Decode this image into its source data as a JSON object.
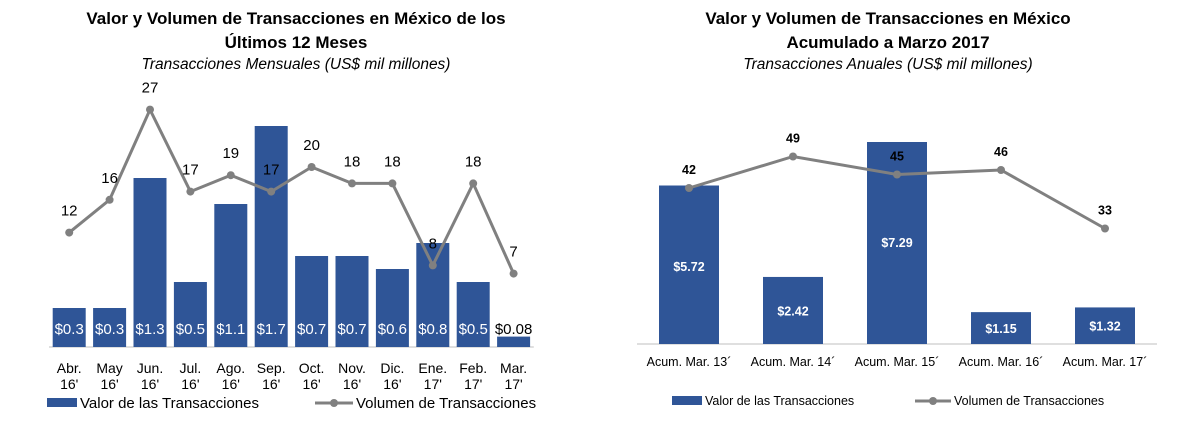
{
  "colors": {
    "bar": "#2F5597",
    "line": "#808080",
    "text": "#000000",
    "bar_label": "#ffffff"
  },
  "chart_data": [
    {
      "type": "bar",
      "title_line1": "Valor y Volumen de Transacciones en México de los",
      "title_line2": "Últimos 12 Meses",
      "subtitle": "Transacciones Mensuales (US$ mil millones)",
      "categories": [
        [
          "Abr.",
          "16'"
        ],
        [
          "May",
          "16'"
        ],
        [
          "Jun.",
          "16'"
        ],
        [
          "Jul.",
          "16'"
        ],
        [
          "Ago.",
          "16'"
        ],
        [
          "Sep.",
          "16'"
        ],
        [
          "Oct.",
          "16'"
        ],
        [
          "Nov.",
          "16'"
        ],
        [
          "Dic.",
          "16'"
        ],
        [
          "Ene.",
          "17'"
        ],
        [
          "Feb.",
          "17'"
        ],
        [
          "Mar.",
          "17'"
        ]
      ],
      "series": [
        {
          "name": "Valor de las Transacciones",
          "type": "bar",
          "values": [
            0.3,
            0.3,
            1.3,
            0.5,
            1.1,
            1.7,
            0.7,
            0.7,
            0.6,
            0.8,
            0.5,
            0.08
          ],
          "labels": [
            "$0.3",
            "$0.3",
            "$1.3",
            "$0.5",
            "$1.1",
            "$1.7",
            "$0.7",
            "$0.7",
            "$0.6",
            "$0.8",
            "$0.5",
            "$0.08"
          ]
        },
        {
          "name": "Volumen de Transacciones",
          "type": "line",
          "values": [
            12,
            16,
            27,
            17,
            19,
            17,
            20,
            18,
            18,
            8,
            18,
            7
          ],
          "labels": [
            "12",
            "16",
            "27",
            "17",
            "19",
            "17",
            "20",
            "18",
            "18",
            "8",
            "18",
            "7"
          ]
        }
      ],
      "legend": "bottom"
    },
    {
      "type": "bar",
      "title_line1": "Valor y Volumen de Transacciones en México",
      "title_line2": "Acumulado a Marzo 2017",
      "subtitle": "Transacciones Anuales (US$ mil millones)",
      "categories": [
        "Acum. Mar. 13´",
        "Acum. Mar. 14´",
        "Acum. Mar. 15´",
        "Acum. Mar. 16´",
        "Acum. Mar. 17´"
      ],
      "series": [
        {
          "name": "Valor de las Transacciones",
          "type": "bar",
          "values": [
            5.72,
            2.42,
            7.29,
            1.15,
            1.32
          ],
          "labels": [
            "$5.72",
            "$2.42",
            "$7.29",
            "$1.15",
            "$1.32"
          ]
        },
        {
          "name": "Volumen de Transacciones",
          "type": "line",
          "values": [
            42,
            49,
            45,
            46,
            33
          ],
          "labels": [
            "42",
            "49",
            "45",
            "46",
            "33"
          ]
        }
      ],
      "legend": "bottom"
    }
  ]
}
